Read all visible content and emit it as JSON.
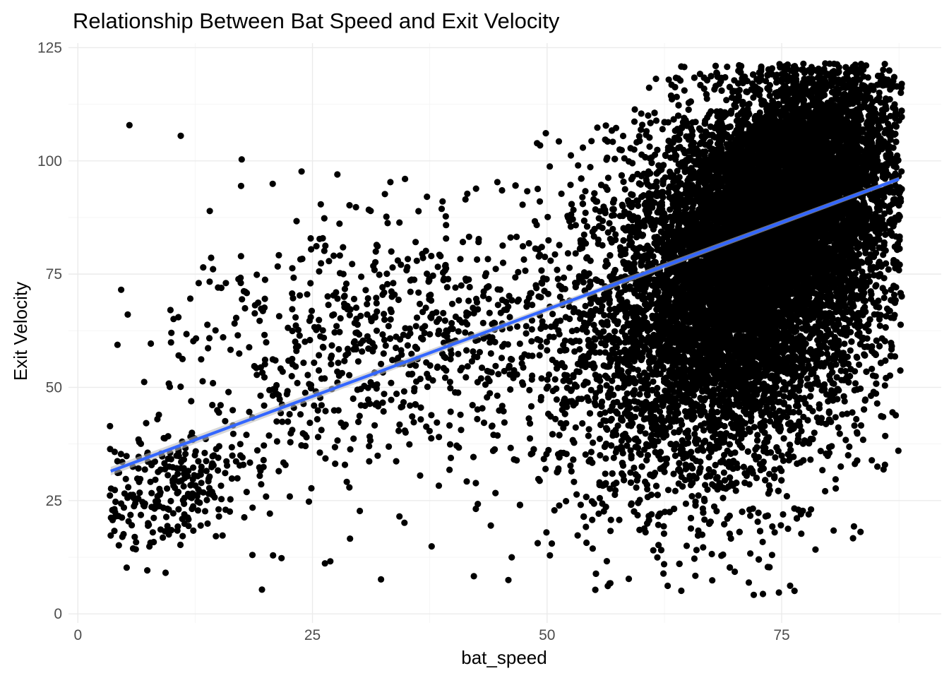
{
  "chart_data": {
    "type": "scatter",
    "title": "Relationship Between Bat Speed and Exit Velocity",
    "xlabel": "bat_speed",
    "ylabel": "Exit Velocity",
    "xlim": [
      -1,
      92
    ],
    "ylim": [
      -2,
      126
    ],
    "x_ticks": [
      "0",
      "25",
      "50",
      "75"
    ],
    "x_tick_values": [
      0,
      25,
      50,
      75
    ],
    "y_ticks": [
      "0",
      "25",
      "50",
      "75",
      "100",
      "125"
    ],
    "y_tick_values": [
      0,
      25,
      50,
      75,
      100,
      125
    ],
    "grid": true,
    "legend": "none",
    "colors": {
      "points": "#000000",
      "trend_line": "#3366ff",
      "confidence_band": "#bdbdbd"
    },
    "trend_line": {
      "method": "linear",
      "x": [
        3.5,
        87.5
      ],
      "y": [
        31.5,
        96.0
      ]
    },
    "point_regions": [
      {
        "x_center": 72,
        "y_center": 78,
        "x_spread": 7.5,
        "y_spread": 21,
        "correlation": 0.35,
        "count": 13000
      },
      {
        "x_center": 76,
        "y_center": 92,
        "x_spread": 5,
        "y_spread": 13,
        "correlation": 0.4,
        "count": 4000
      },
      {
        "x_center": 70,
        "y_center": 70,
        "x_spread": 10,
        "y_spread": 24,
        "correlation": 0.3,
        "count": 2600
      },
      {
        "x_center": 38,
        "y_center": 60,
        "x_spread": 11,
        "y_spread": 13,
        "correlation": 0.1,
        "count": 650
      },
      {
        "x_center": 9,
        "y_center": 28,
        "x_spread": 5,
        "y_spread": 7,
        "correlation": 0.3,
        "count": 280
      },
      {
        "x_center": 22,
        "y_center": 55,
        "x_spread": 7,
        "y_spread": 18,
        "correlation": 0.1,
        "count": 160
      }
    ],
    "points": [
      [
        80.9,
        121.3
      ],
      [
        78.7,
        119.9
      ],
      [
        83.3,
        119.8
      ],
      [
        84.2,
        118.4
      ],
      [
        82.0,
        118.0
      ],
      [
        86.6,
        109.9
      ],
      [
        87.1,
        111.4
      ],
      [
        86.9,
        102.9
      ],
      [
        86.2,
        98.9
      ],
      [
        86.9,
        93.0
      ],
      [
        87.0,
        86.3
      ],
      [
        87.1,
        76.3
      ],
      [
        87.0,
        70.4
      ],
      [
        86.0,
        60.2
      ],
      [
        86.7,
        58.4
      ],
      [
        86.0,
        50.4
      ],
      [
        86.0,
        32.9
      ],
      [
        85.2,
        32.5
      ],
      [
        84.6,
        33.9
      ],
      [
        82.8,
        33.1
      ],
      [
        82.7,
        19.3
      ],
      [
        83.4,
        18.1
      ],
      [
        82.6,
        16.7
      ],
      [
        82.2,
        36.9
      ],
      [
        78.6,
        14.2
      ],
      [
        75.9,
        6.2
      ],
      [
        74.7,
        4.7
      ],
      [
        73.7,
        10.3
      ],
      [
        73.0,
        4.4
      ],
      [
        71.5,
        6.9
      ],
      [
        64.3,
        5.1
      ],
      [
        65.8,
        8.4
      ],
      [
        62.4,
        8.9
      ],
      [
        67.6,
        7.4
      ],
      [
        70.0,
        9.3
      ],
      [
        42.2,
        8.3
      ],
      [
        26.9,
        11.6
      ],
      [
        20.8,
        12.9
      ],
      [
        21.7,
        12.3
      ],
      [
        9.8,
        50.1
      ],
      [
        12.3,
        60.2
      ],
      [
        23.3,
        86.7
      ],
      [
        14.4,
        76.1
      ],
      [
        44.7,
        95.3
      ],
      [
        45.2,
        93.5
      ],
      [
        33.3,
        95.3
      ],
      [
        31.0,
        89.2
      ],
      [
        36.3,
        88.9
      ],
      [
        49.0,
        93.8
      ],
      [
        52.5,
        94.7
      ],
      [
        53.3,
        99.0
      ],
      [
        56.4,
        100.7
      ],
      [
        58.1,
        105.5
      ],
      [
        57.0,
        104.2
      ],
      [
        62.9,
        108.5
      ],
      [
        64.6,
        108.0
      ],
      [
        62.3,
        107.0
      ],
      [
        5.2,
        10.2
      ],
      [
        7.4,
        9.6
      ],
      [
        29.0,
        16.6
      ],
      [
        37.7,
        14.9
      ],
      [
        50.3,
        12.9
      ],
      [
        54.2,
        15.7
      ],
      [
        3.5,
        17.3
      ],
      [
        4.0,
        21.5
      ],
      [
        3.7,
        20.7
      ],
      [
        55.5,
        22.1
      ],
      [
        44.0,
        19.5
      ],
      [
        34.8,
        20.1
      ],
      [
        18.6,
        13.0
      ]
    ]
  }
}
